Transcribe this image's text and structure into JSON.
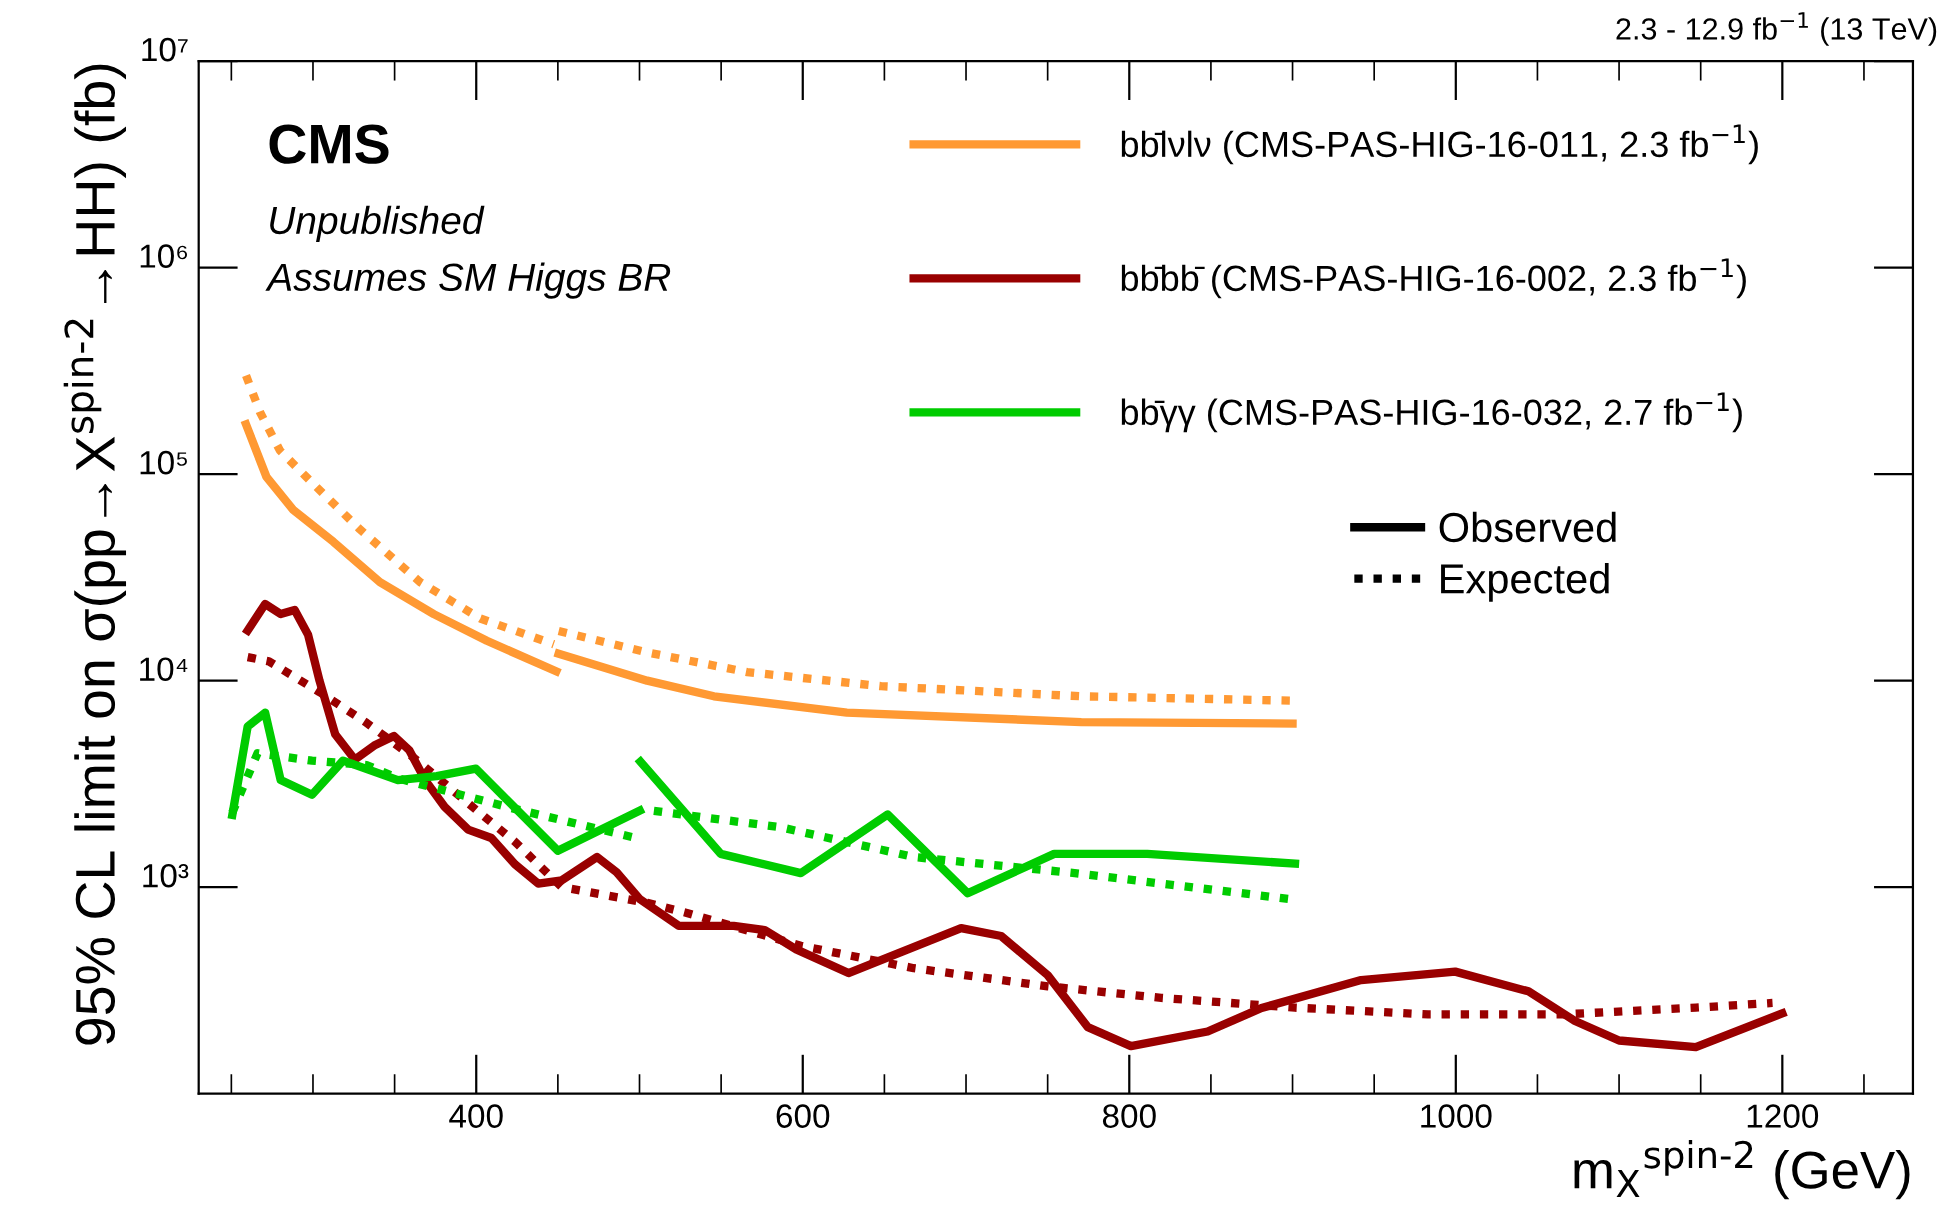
{
  "chart_data": {
    "type": "line",
    "title": "CMS",
    "subtitle": "2.3 - 12.9 fb$^{−1}$ (13 TeV)",
    "xlabel": "m$_{X}$$^{spin-2}$ (GeV)",
    "ylabel": "95% CL limit on σ(pp→X$^{spin-2}$→HH) (fb)",
    "annotations": [
      "Unpublished",
      "Assumes SM Higgs BR",
      "Observed",
      "Expected"
    ],
    "log": "y",
    "xlim": [
      230,
      1280
    ],
    "ylim": [
      100,
      10000000
    ],
    "xticks": [
      400,
      600,
      800,
      1000,
      1200
    ],
    "yticks": [
      {
        "value": 1000,
        "label": "10³"
      },
      {
        "value": 10000,
        "label": "10⁴"
      },
      {
        "value": 100000,
        "label": "10⁵"
      },
      {
        "value": 1000000,
        "label": "10⁶"
      },
      {
        "value": 10000000,
        "label": "10⁷"
      }
    ],
    "grid": false,
    "legend": "top right",
    "series": [
      {
        "name": "bb̄lνlν (CMS-PAS-HIG-16-011, 2.3 fb$^{−1}$)",
        "color": "#ff9933",
        "line_style": "solid",
        "x": [
          259,
          271.5,
          288,
          312.5,
          341,
          374,
          406.5,
          449
        ],
        "values": [
          174000,
          97000,
          67000,
          47000,
          30000,
          21000,
          15600,
          11100
        ]
      },
      {
        "color": "#ff9933",
        "line_style": "solid",
        "x": [
          450.5,
          504.7,
          545.6,
          627,
          770.6,
          900
        ],
        "values": [
          13500,
          10000,
          8400,
          7000,
          6300,
          6200
        ]
      },
      {
        "color": "#ff9933",
        "line_style": "dotted",
        "x": [
          259,
          267.5,
          279.8,
          300,
          328.8,
          365.6,
          402.5,
          447.5
        ],
        "values": [
          300000,
          200000,
          130000,
          90000,
          54000,
          30000,
          20000,
          15000
        ]
      },
      {
        "color": "#ff9933",
        "line_style": "dotted",
        "x": [
          450.5,
          504.7,
          566,
          648,
          770.6,
          900
        ],
        "values": [
          17400,
          13700,
          11000,
          9400,
          8400,
          8000
        ]
      },
      {
        "name": "bb̄bb̄ (CMS-PAS-HIG-16-002, 2.3 fb$^{−1}$)",
        "color": "#990000",
        "line_style": "solid",
        "x": [
          260,
          270.7,
          280.2,
          288.8,
          297,
          304,
          313.6,
          325.6,
          337.5,
          349.6,
          359,
          368.7,
          380.6,
          395,
          409.3,
          423.7,
          438,
          452.4,
          474,
          486,
          500.2,
          524,
          557.7,
          576.7,
          596,
          628,
          697,
          721.5,
          750,
          774.6,
          801,
          848,
          881,
          942,
          999.6,
          1044.5,
          1073,
          1100,
          1147,
          1200
        ],
        "values": [
          17500,
          23500,
          21000,
          22000,
          16700,
          10000,
          5500,
          4150,
          4850,
          5400,
          4600,
          3300,
          2450,
          1900,
          1730,
          1290,
          1040,
          1080,
          1400,
          1180,
          875,
          650,
          650,
          620,
          500,
          384,
          633,
          580,
          375,
          210,
          170,
          200,
          260,
          355,
          390,
          313,
          225,
          181,
          168,
          245
        ]
      },
      {
        "color": "#990000",
        "line_style": "dotted",
        "x": [
          260,
          273,
          304,
          332.8,
          361.5,
          395,
          423.7,
          452.4,
          504.7,
          529,
          598.8,
          668,
          750,
          819.6,
          901.5,
          983,
          1065,
          1147,
          1194
        ],
        "values": [
          13000,
          12400,
          8800,
          6250,
          4250,
          2550,
          1660,
          1000,
          840,
          750,
          520,
          405,
          331,
          291,
          261,
          242,
          242,
          261,
          275
        ]
      },
      {
        "name": "bb̄γγ (CMS-PAS-HIG-16-032, 2.7 fb$^{−1}$)",
        "color": "#00cc00",
        "line_style": "solid",
        "x": [
          250.6,
          260,
          270.7,
          280.2,
          299.4,
          318.4,
          352,
          375.8,
          399.8,
          450,
          500.2
        ],
        "values": [
          2240,
          6000,
          7000,
          3300,
          2800,
          4100,
          3300,
          3450,
          3750,
          1500,
          2350
        ]
      },
      {
        "color": "#00cc00",
        "line_style": "solid",
        "x": [
          500.6,
          549.7,
          598.8,
          652,
          701,
          754,
          811,
          901.5
        ],
        "values": [
          4050,
          1450,
          1170,
          2250,
          935,
          1450,
          1450,
          1300
        ]
      },
      {
        "color": "#00cc00",
        "line_style": "dotted",
        "x": [
          250.6,
          266,
          299.4,
          332.8,
          353,
          423,
          496.6
        ],
        "values": [
          2300,
          4450,
          4100,
          3900,
          3350,
          2400,
          1740
        ]
      },
      {
        "color": "#00cc00",
        "line_style": "dotted",
        "x": [
          508.8,
          586.5,
          668,
          766.5,
          901.5
        ],
        "values": [
          2340,
          1950,
          1400,
          1170,
          870
        ]
      }
    ]
  }
}
